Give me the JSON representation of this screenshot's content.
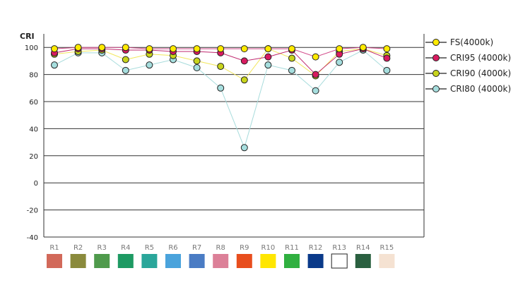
{
  "chart_data": {
    "type": "line",
    "ylabel": "CRI",
    "ylim": [
      -40,
      110
    ],
    "yticks": [
      100,
      80,
      60,
      40,
      20,
      0,
      -20,
      -40
    ],
    "categories": [
      "R1",
      "R2",
      "R3",
      "R4",
      "R5",
      "R6",
      "R7",
      "R8",
      "R9",
      "R10",
      "R11",
      "R12",
      "R13",
      "R14",
      "R15"
    ],
    "swatch_colors": [
      "#d2695a",
      "#8a8a3c",
      "#4f9a4c",
      "#1e9a63",
      "#2aa69a",
      "#4aa3dc",
      "#4a7cc4",
      "#dc8098",
      "#e84e1e",
      "#ffe600",
      "#30b040",
      "#0a3a8a",
      "#ffffff",
      "#2a6040",
      "#f5e2d2"
    ],
    "legend_position": "right",
    "grid": true,
    "series": [
      {
        "name": "FS(4000k)",
        "color": "#ffea00",
        "line_color": "#d24a8a",
        "values": [
          99,
          100,
          100,
          100,
          99,
          99,
          99,
          99,
          99,
          99,
          99,
          93,
          99,
          100,
          99
        ]
      },
      {
        "name": "CRI95 (4000k)",
        "color": "#d81b60",
        "line_color": "#c02a70",
        "values": [
          96,
          99,
          99,
          98,
          98,
          97,
          97,
          96,
          90,
          93,
          98,
          80,
          95,
          99,
          92
        ]
      },
      {
        "name": "CRI90 (4000k)",
        "color": "#c8d41c",
        "line_color": "#f2e65a",
        "values": [
          95,
          97,
          98,
          91,
          95,
          94,
          90,
          86,
          76,
          99,
          92,
          79,
          97,
          99,
          94
        ]
      },
      {
        "name": "CRI80 (4000k)",
        "color": "#a6dede",
        "line_color": "#a8dcdc",
        "values": [
          87,
          96,
          96,
          83,
          87,
          91,
          85,
          70,
          26,
          87,
          83,
          68,
          89,
          98,
          83
        ]
      }
    ]
  }
}
